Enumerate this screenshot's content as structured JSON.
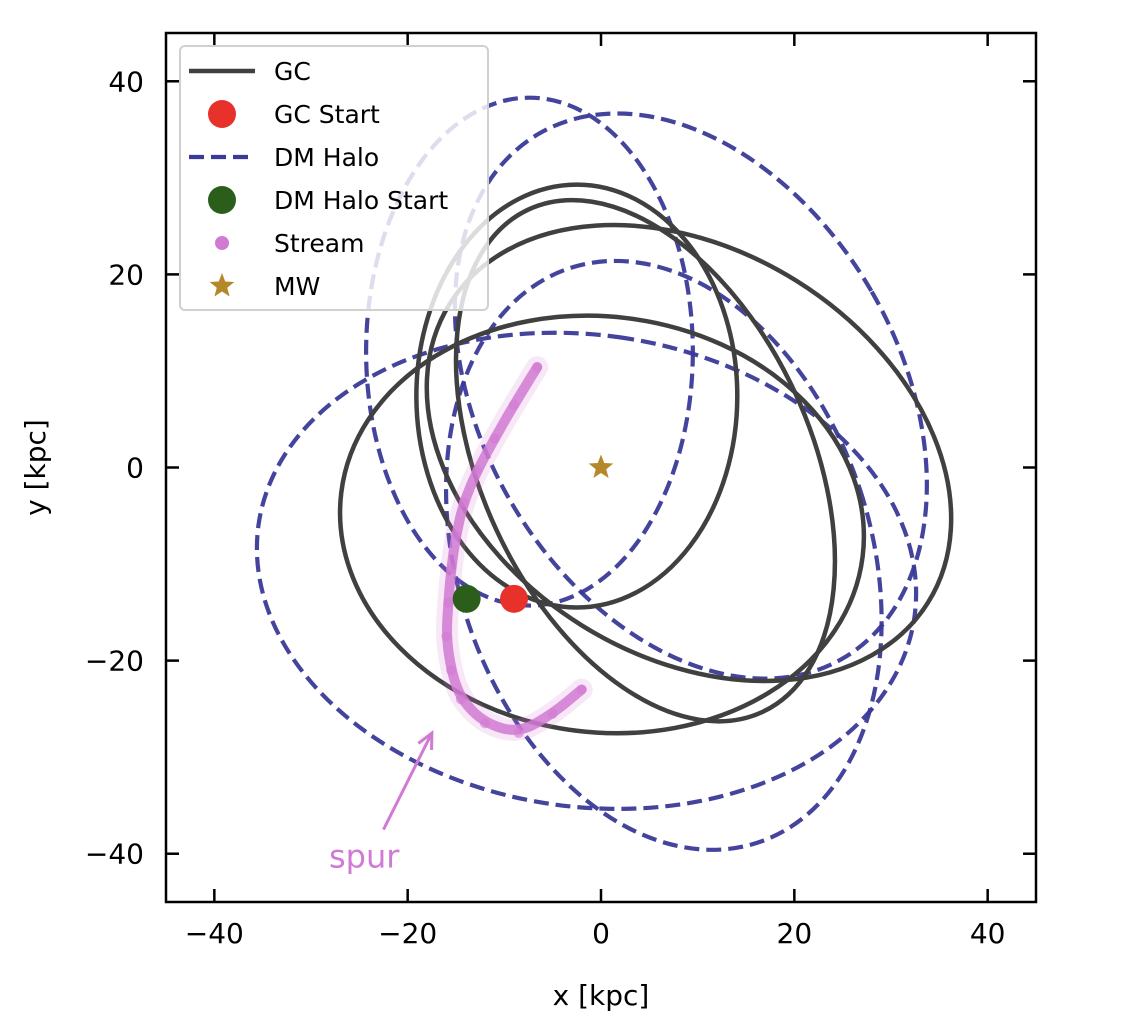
{
  "chart_data": {
    "type": "line",
    "xlabel": "x [kpc]",
    "ylabel": "y [kpc]",
    "xlim": [
      -45,
      45
    ],
    "ylim": [
      -45,
      45
    ],
    "xticks": [
      -40,
      -20,
      0,
      20,
      40
    ],
    "yticks": [
      -40,
      -20,
      0,
      20,
      40
    ],
    "xtick_labels": [
      "−40",
      "−20",
      "0",
      "20",
      "40"
    ],
    "ytick_labels": [
      "−40",
      "−20",
      "0",
      "20",
      "40"
    ],
    "grid": false,
    "legend_position": "top-left",
    "legend": [
      {
        "label": "GC",
        "kind": "line-solid",
        "color": "#404040"
      },
      {
        "label": "GC Start",
        "kind": "dot",
        "color": "#e8312a"
      },
      {
        "label": "DM Halo",
        "kind": "line-dashed",
        "color": "#3a3a98"
      },
      {
        "label": "DM Halo Start",
        "kind": "dot",
        "color": "#2a5e1a"
      },
      {
        "label": "Stream",
        "kind": "small-dot",
        "color": "#d17ad4"
      },
      {
        "label": "MW",
        "kind": "star",
        "color": "#b5892a"
      }
    ],
    "series": [
      {
        "name": "GC",
        "color": "#404040",
        "style": "solid",
        "ellipses": [
          {
            "cx": -2.5,
            "cy": 7.4,
            "rx": 16.6,
            "ry": 21.9,
            "angle": 0
          },
          {
            "cx": 4.6,
            "cy": 0.7,
            "rx": 17.0,
            "ry": 28.7,
            "angle": -25
          },
          {
            "cx": 9.1,
            "cy": 1.5,
            "rx": 21.0,
            "ry": 29.2,
            "angle": -58
          },
          {
            "cx": 0.1,
            "cy": -5.9,
            "rx": 21.5,
            "ry": 27.2,
            "angle": -83
          }
        ]
      },
      {
        "name": "DM Halo",
        "color": "#3a3a98",
        "style": "dashed",
        "ellipses": [
          {
            "cx": -7.4,
            "cy": 12.0,
            "rx": 16.9,
            "ry": 26.3,
            "angle": 0
          },
          {
            "cx": 9.3,
            "cy": 7.4,
            "rx": 21.6,
            "ry": 31.4,
            "angle": -30
          },
          {
            "cx": -1.5,
            "cy": -10.7,
            "rx": 24.4,
            "ry": 34.3,
            "angle": -82
          },
          {
            "cx": 6.5,
            "cy": -9.1,
            "rx": 21.4,
            "ry": 31.3,
            "angle": -18
          }
        ]
      },
      {
        "name": "Stream",
        "color": "#d17ad4",
        "style": "points",
        "points": [
          [
            -6.6,
            10.4
          ],
          [
            -9.0,
            6.5
          ],
          [
            -11.0,
            3.0
          ],
          [
            -12.8,
            -0.3
          ],
          [
            -14.2,
            -3.6
          ],
          [
            -15.0,
            -7.0
          ],
          [
            -15.5,
            -10.5
          ],
          [
            -15.8,
            -14.0
          ],
          [
            -16.0,
            -17.5
          ],
          [
            -15.5,
            -21.0
          ],
          [
            -14.5,
            -24.0
          ],
          [
            -12.0,
            -26.5
          ],
          [
            -8.5,
            -27.5
          ],
          [
            -5.0,
            -25.5
          ],
          [
            -2.0,
            -23.0
          ]
        ]
      }
    ],
    "markers": [
      {
        "name": "GC Start",
        "x": -9.0,
        "y": -13.6,
        "color": "#e8312a"
      },
      {
        "name": "DM Halo Start",
        "x": -13.9,
        "y": -13.6,
        "color": "#2a5e1a"
      },
      {
        "name": "MW",
        "x": 0.0,
        "y": 0.0,
        "color": "#b5892a"
      }
    ],
    "annotations": [
      {
        "text": "spur",
        "text_x": -24.5,
        "text_y": -40.5,
        "arrow_from": [
          -22.5,
          -37.5
        ],
        "arrow_to": [
          -17.5,
          -27.5
        ],
        "color": "#d17ad4"
      }
    ]
  }
}
